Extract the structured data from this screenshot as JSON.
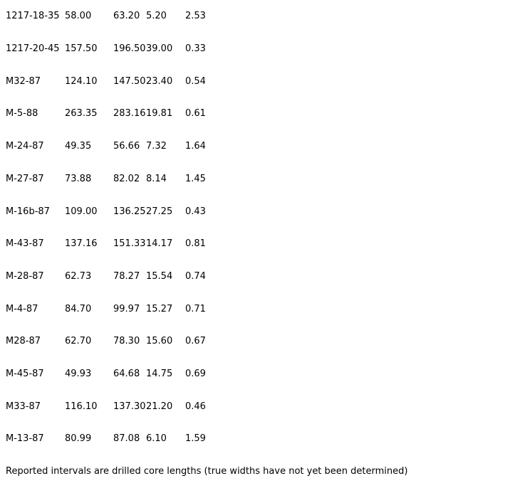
{
  "page": {
    "background_color": "#ffffff",
    "text_color": "#000000"
  },
  "table": {
    "rows": [
      {
        "cells": [
          "1217-18-35",
          "58.00",
          "63.20",
          "5.20",
          "2.53"
        ]
      },
      {
        "cells": [
          "1217-20-45",
          "157.50",
          "196.50",
          "39.00",
          "0.33"
        ]
      },
      {
        "cells": [
          "M32-87",
          "124.10",
          "147.50",
          "23.40",
          "0.54"
        ]
      },
      {
        "cells": [
          "M-5-88",
          "263.35",
          "283.16",
          "19.81",
          "0.61"
        ]
      },
      {
        "cells": [
          "M-24-87",
          "49.35",
          "56.66",
          "7.32",
          "1.64"
        ]
      },
      {
        "cells": [
          "M-27-87",
          "73.88",
          "82.02",
          "8.14",
          "1.45"
        ]
      },
      {
        "cells": [
          "M-16b-87",
          "109.00",
          "136.25",
          "27.25",
          "0.43"
        ]
      },
      {
        "cells": [
          "M-43-87",
          "137.16",
          "151.33",
          "14.17",
          "0.81"
        ]
      },
      {
        "cells": [
          "M-28-87",
          "62.73",
          "78.27",
          "15.54",
          "0.74"
        ]
      },
      {
        "cells": [
          "M-4-87",
          "84.70",
          "99.97",
          "15.27",
          "0.71"
        ]
      },
      {
        "cells": [
          "M28-87",
          "62.70",
          "78.30",
          "15.60",
          "0.67"
        ]
      },
      {
        "cells": [
          "M-45-87",
          "49.93",
          "64.68",
          "14.75",
          "0.69"
        ]
      },
      {
        "cells": [
          "M33-87",
          "116.10",
          "137.30",
          "21.20",
          "0.46"
        ]
      },
      {
        "cells": [
          "M-13-87",
          "80.99",
          "87.08",
          "6.10",
          "1.59"
        ]
      }
    ]
  },
  "footer": {
    "note": "Reported intervals are drilled core lengths (true widths have not yet been determined)"
  }
}
